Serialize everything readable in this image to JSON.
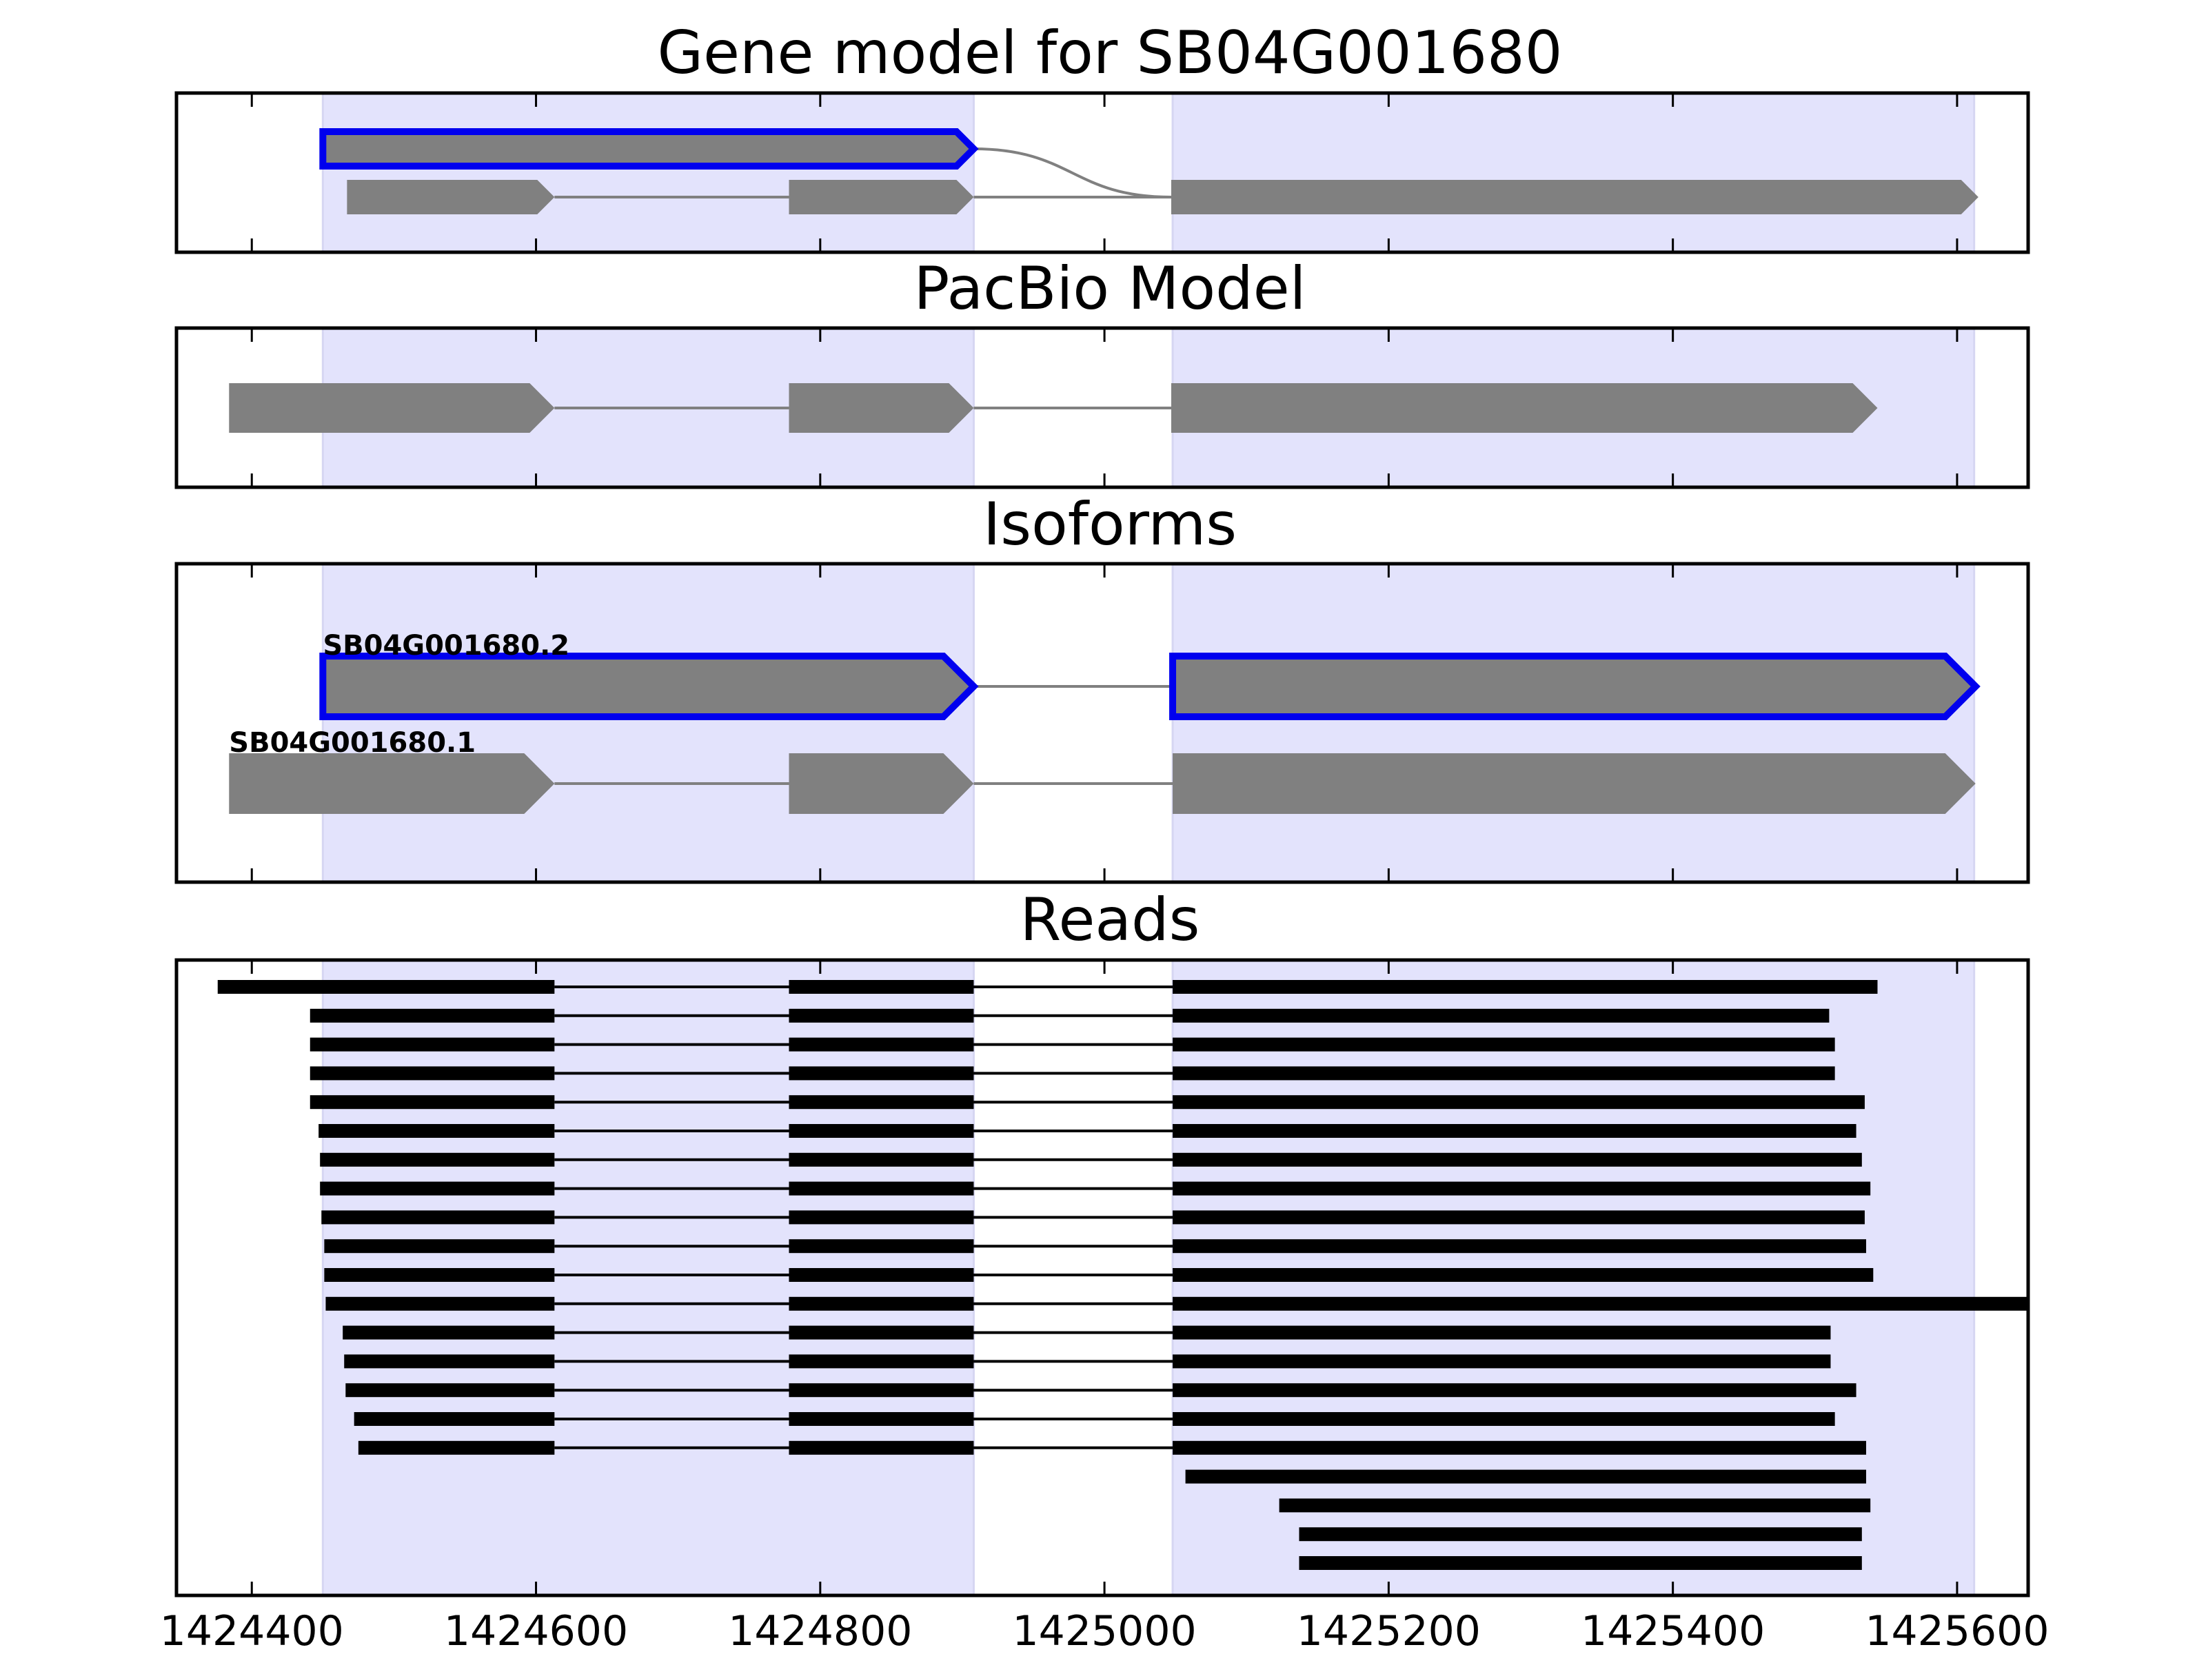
{
  "chart_data": {
    "type": "gene-track",
    "xlim": [
      1424347,
      1425650
    ],
    "xticks": [
      1424400,
      1424600,
      1424800,
      1425000,
      1425200,
      1425400,
      1425600
    ],
    "tick_labels": [
      "1424400",
      "1424600",
      "1424800",
      "1425000",
      "1425200",
      "1425400",
      "1425600"
    ],
    "highlight_color": "#e3e3fc",
    "feature_color": "#808080",
    "highlight_edge": "#0000ee",
    "read_color": "#000000",
    "shaded_regions": [
      [
        1424450,
        1424908
      ],
      [
        1425048,
        1425612
      ]
    ],
    "panels": [
      {
        "title": "Gene model for SB04G001680",
        "rows": 2,
        "tracks": [
          {
            "row": 0,
            "highlighted": true,
            "exons": [
              [
                1424450,
                1424908
              ]
            ],
            "connector": {
              "to_row": 1,
              "to_x": 1425047
            }
          },
          {
            "row": 1,
            "highlighted": false,
            "exons": [
              [
                1424467,
                1424613
              ],
              [
                1424778,
                1424908
              ],
              [
                1425047,
                1425615
              ]
            ]
          }
        ]
      },
      {
        "title": "PacBio Model",
        "rows": 1,
        "tracks": [
          {
            "row": 0,
            "highlighted": false,
            "exons": [
              [
                1424384,
                1424613
              ],
              [
                1424778,
                1424908
              ],
              [
                1425047,
                1425544
              ]
            ]
          }
        ]
      },
      {
        "title": "Isoforms",
        "rows": 2,
        "tracks": [
          {
            "row": 0,
            "label": "SB04G001680.2",
            "highlighted": true,
            "exons": [
              [
                1424450,
                1424908
              ],
              [
                1425048,
                1425613
              ]
            ]
          },
          {
            "row": 1,
            "label": "SB04G001680.1",
            "highlighted": false,
            "exons": [
              [
                1424384,
                1424613
              ],
              [
                1424778,
                1424908
              ],
              [
                1425048,
                1425613
              ]
            ]
          }
        ]
      },
      {
        "title": "Reads",
        "reads": [
          [
            [
              1424376,
              1424613
            ],
            [
              1424778,
              1424908
            ],
            [
              1425048,
              1425544
            ]
          ],
          [
            [
              1424441,
              1424613
            ],
            [
              1424778,
              1424908
            ],
            [
              1425048,
              1425510
            ]
          ],
          [
            [
              1424441,
              1424613
            ],
            [
              1424778,
              1424908
            ],
            [
              1425048,
              1425514
            ]
          ],
          [
            [
              1424441,
              1424613
            ],
            [
              1424778,
              1424908
            ],
            [
              1425048,
              1425514
            ]
          ],
          [
            [
              1424441,
              1424613
            ],
            [
              1424778,
              1424908
            ],
            [
              1425048,
              1425535
            ]
          ],
          [
            [
              1424447,
              1424613
            ],
            [
              1424778,
              1424908
            ],
            [
              1425048,
              1425529
            ]
          ],
          [
            [
              1424448,
              1424613
            ],
            [
              1424778,
              1424908
            ],
            [
              1425048,
              1425533
            ]
          ],
          [
            [
              1424448,
              1424613
            ],
            [
              1424778,
              1424908
            ],
            [
              1425048,
              1425539
            ]
          ],
          [
            [
              1424449,
              1424613
            ],
            [
              1424778,
              1424908
            ],
            [
              1425048,
              1425535
            ]
          ],
          [
            [
              1424451,
              1424613
            ],
            [
              1424778,
              1424908
            ],
            [
              1425048,
              1425536
            ]
          ],
          [
            [
              1424451,
              1424613
            ],
            [
              1424778,
              1424908
            ],
            [
              1425048,
              1425541
            ]
          ],
          [
            [
              1424452,
              1424613
            ],
            [
              1424778,
              1424908
            ],
            [
              1425048,
              1425650
            ]
          ],
          [
            [
              1424464,
              1424613
            ],
            [
              1424778,
              1424908
            ],
            [
              1425048,
              1425511
            ]
          ],
          [
            [
              1424465,
              1424613
            ],
            [
              1424778,
              1424908
            ],
            [
              1425048,
              1425511
            ]
          ],
          [
            [
              1424466,
              1424613
            ],
            [
              1424778,
              1424908
            ],
            [
              1425048,
              1425529
            ]
          ],
          [
            [
              1424472,
              1424613
            ],
            [
              1424778,
              1424908
            ],
            [
              1425048,
              1425514
            ]
          ],
          [
            [
              1424475,
              1424613
            ],
            [
              1424778,
              1424908
            ],
            [
              1425048,
              1425536
            ]
          ],
          [
            [
              1425057,
              1425536
            ]
          ],
          [
            [
              1425123,
              1425539
            ]
          ],
          [
            [
              1425137,
              1425533
            ]
          ],
          [
            [
              1425137,
              1425533
            ]
          ]
        ]
      }
    ]
  }
}
